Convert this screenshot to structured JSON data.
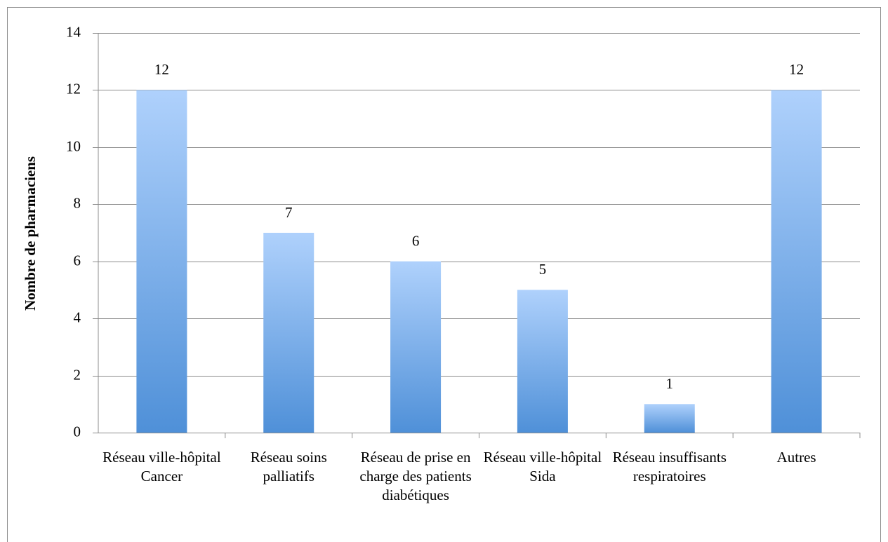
{
  "chart_data": {
    "type": "bar",
    "y_axis_label": "Nombre de pharmaciens",
    "categories": [
      "Réseau ville-hôpital Cancer",
      "Réseau soins palliatifs",
      "Réseau de prise en charge des patients diabétiques",
      "Réseau ville-hôpital Sida",
      "Réseau insuffisants respiratoires",
      "Autres"
    ],
    "values": [
      12,
      7,
      6,
      5,
      1,
      12
    ],
    "color": "#4f90d8",
    "ylim": [
      0,
      14
    ],
    "yticks": [
      0,
      2,
      4,
      6,
      8,
      10,
      12,
      14
    ],
    "grid": true
  }
}
